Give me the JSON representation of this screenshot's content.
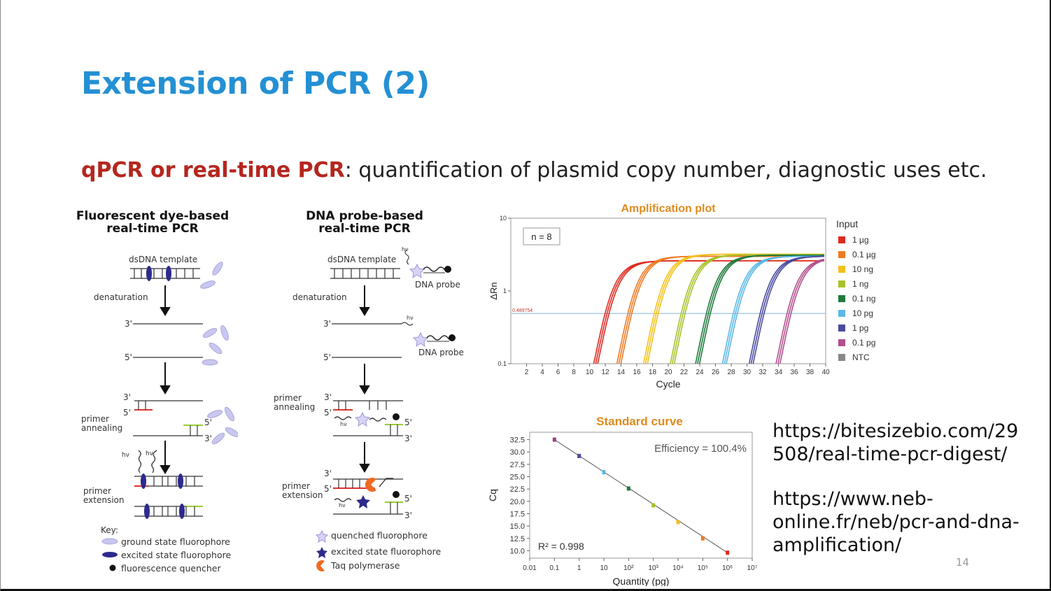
{
  "slide": {
    "title": "Extension of PCR (2)",
    "subtitle_highlight": "qPCR or real-time PCR",
    "subtitle_rest": ": quantification of plasmid copy number, diagnostic uses etc.",
    "page_number": "14"
  },
  "panel_dye": {
    "title_line1": "Fluorescent dye-based",
    "title_line2": "real-time PCR",
    "template_label": "dsDNA template",
    "step_denaturation": "denaturation",
    "step_annealing_1": "primer",
    "step_annealing_2": "annealing",
    "step_extension_1": "primer",
    "step_extension_2": "extension",
    "end_3": "3'",
    "end_5": "5'",
    "hv_label": "hν",
    "key_title": "Key:",
    "key_items": [
      "ground state fluorophore",
      "excited state fluorophore",
      "fluorescence quencher"
    ]
  },
  "panel_probe": {
    "title_line1": "DNA probe-based",
    "title_line2": "real-time PCR",
    "template_label": "dsDNA template",
    "probe_label": "DNA probe",
    "step_denaturation": "denaturation",
    "step_annealing_1": "primer",
    "step_annealing_2": "annealing",
    "step_extension_1": "primer",
    "step_extension_2": "extension",
    "end_3": "3'",
    "end_5": "5'",
    "hv_label": "hν",
    "key_items": [
      "quenched fluorophore",
      "excited state fluorophore",
      "Taq polymerase"
    ]
  },
  "chart_data": [
    {
      "type": "line",
      "title": "Amplification plot",
      "xlabel": "Cycle",
      "ylabel": "ΔRn",
      "y_scale": "log",
      "xlim": [
        0,
        40
      ],
      "ylim": [
        0.1,
        10
      ],
      "x_ticks": [
        2,
        4,
        6,
        8,
        10,
        12,
        14,
        16,
        18,
        20,
        22,
        24,
        26,
        28,
        30,
        32,
        34,
        36,
        38,
        40
      ],
      "y_ticks": [
        "10",
        "1",
        "0.1"
      ],
      "threshold_label": "0.489754",
      "threshold": 0.49,
      "annotation": "n = 8",
      "legend_title": "Input",
      "legend_position": "right",
      "series": [
        {
          "name": "1 µg",
          "color": "#e02a20",
          "ct": 8.8,
          "plateau": 2.6
        },
        {
          "name": "0.1 µg",
          "color": "#ee7a22",
          "ct": 11.8,
          "plateau": 3.0
        },
        {
          "name": "10 ng",
          "color": "#f2c21b",
          "ct": 15.2,
          "plateau": 3.2
        },
        {
          "name": "1 ng",
          "color": "#a9c12a",
          "ct": 18.6,
          "plateau": 3.15
        },
        {
          "name": "0.1 ng",
          "color": "#1f7a3c",
          "ct": 21.8,
          "plateau": 3.1
        },
        {
          "name": "10 pg",
          "color": "#5ab8e6",
          "ct": 25.2,
          "plateau": 3.0
        },
        {
          "name": "1 pg",
          "color": "#4a4b9e",
          "ct": 28.6,
          "plateau": 3.0
        },
        {
          "name": "0.1 pg",
          "color": "#b34f8e",
          "ct": 32.0,
          "plateau": 2.9
        },
        {
          "name": "NTC",
          "color": "#888888",
          "ct": null,
          "plateau": null
        }
      ]
    },
    {
      "type": "scatter",
      "title": "Standard curve",
      "xlabel": "Quantity (pg)",
      "ylabel": "Cq",
      "x_scale": "log",
      "x_tick_labels": [
        "0.01",
        "0.1",
        "1",
        "10",
        "10²",
        "10³",
        "10⁴",
        "10⁵",
        "10⁶",
        "10⁷"
      ],
      "y_ticks": [
        10.0,
        12.5,
        15.0,
        17.5,
        20.0,
        22.5,
        25.0,
        27.5,
        30.0,
        32.5
      ],
      "y_tick_labels": [
        "10.0",
        "12.5",
        "15.0",
        "17.5",
        "20.0",
        "22.5",
        "25.0",
        "27.5",
        "30.0",
        "32.5"
      ],
      "ylim": [
        8.5,
        34
      ],
      "annotation_efficiency": "Efficiency = 100.4%",
      "annotation_r2": "R² = 0.998",
      "points": [
        {
          "x": 0.1,
          "y": 32.5,
          "color": "#9a3f86"
        },
        {
          "x": 1,
          "y": 29.2,
          "color": "#4a4b9e"
        },
        {
          "x": 10,
          "y": 25.9,
          "color": "#5ab8e6"
        },
        {
          "x": 100,
          "y": 22.6,
          "color": "#1f7a3c"
        },
        {
          "x": 1000,
          "y": 19.2,
          "color": "#a9c12a"
        },
        {
          "x": 10000,
          "y": 15.8,
          "color": "#f2c21b"
        },
        {
          "x": 100000,
          "y": 12.5,
          "color": "#ee7a22"
        },
        {
          "x": 1000000,
          "y": 9.6,
          "color": "#e02a20"
        }
      ]
    }
  ],
  "links": {
    "url1_line1": "https://bitesizebio.com/29",
    "url1_line2": "508/real-time-pcr-digest/",
    "url2_line1": "https://www.neb-",
    "url2_line2": "online.fr/neb/pcr-and-dna-",
    "url2_line3": "amplification/"
  }
}
